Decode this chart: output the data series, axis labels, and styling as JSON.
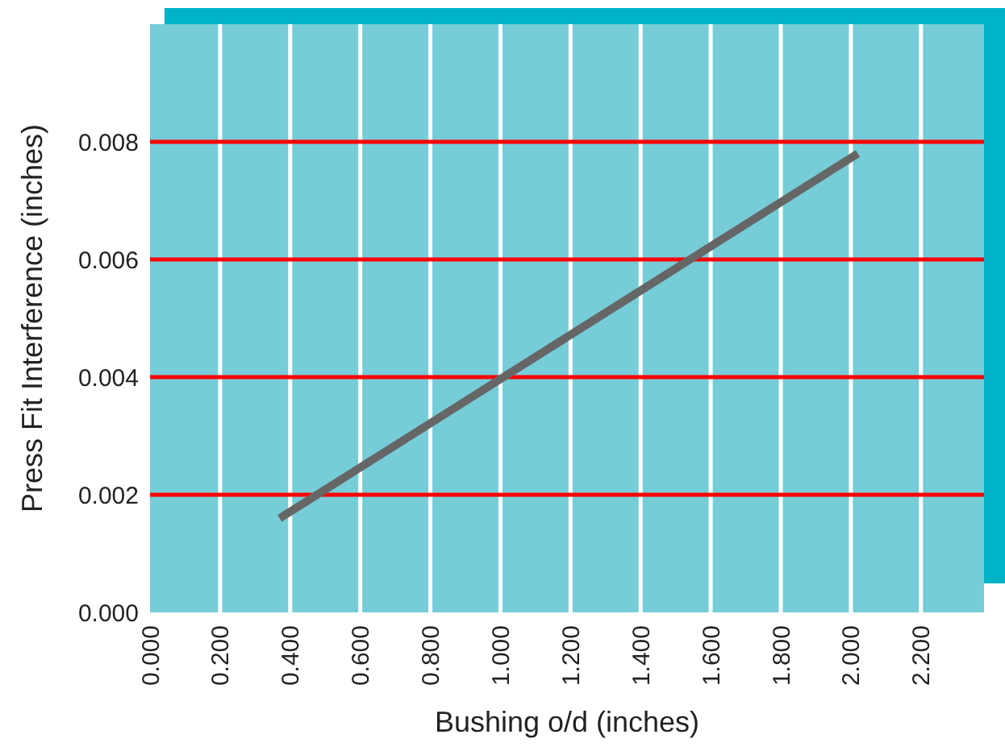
{
  "chart_data": {
    "type": "line",
    "xlabel": "Bushing o/d (inches)",
    "ylabel": "Press Fit Interference (inches)",
    "x": [
      0.37,
      2.02
    ],
    "series": [
      {
        "color": "#666666",
        "values": [
          0.0016,
          0.0078
        ]
      }
    ],
    "xlim": [
      0,
      2.38
    ],
    "ylim": [
      0,
      0.01
    ],
    "xticks": [
      {
        "value": 0,
        "label": "0.000"
      },
      {
        "value": 0.2,
        "label": "0.200"
      },
      {
        "value": 0.4,
        "label": "0.400"
      },
      {
        "value": 0.6,
        "label": "0.600"
      },
      {
        "value": 0.8,
        "label": "0.800"
      },
      {
        "value": 1,
        "label": "1.000"
      },
      {
        "value": 1.2,
        "label": "1.200"
      },
      {
        "value": 1.4,
        "label": "1.400"
      },
      {
        "value": 1.6,
        "label": "1.600"
      },
      {
        "value": 1.8,
        "label": "1.800"
      },
      {
        "value": 2,
        "label": "2.000"
      },
      {
        "value": 2.2,
        "label": "2.200"
      }
    ],
    "yticks": [
      {
        "value": 0,
        "label": "0.000"
      },
      {
        "value": 0.002,
        "label": "0.002"
      },
      {
        "value": 0.004,
        "label": "0.004"
      },
      {
        "value": 0.006,
        "label": "0.006"
      },
      {
        "value": 0.008,
        "label": "0.008"
      }
    ],
    "grid": true,
    "marker": "none",
    "line_style": "solid"
  }
}
